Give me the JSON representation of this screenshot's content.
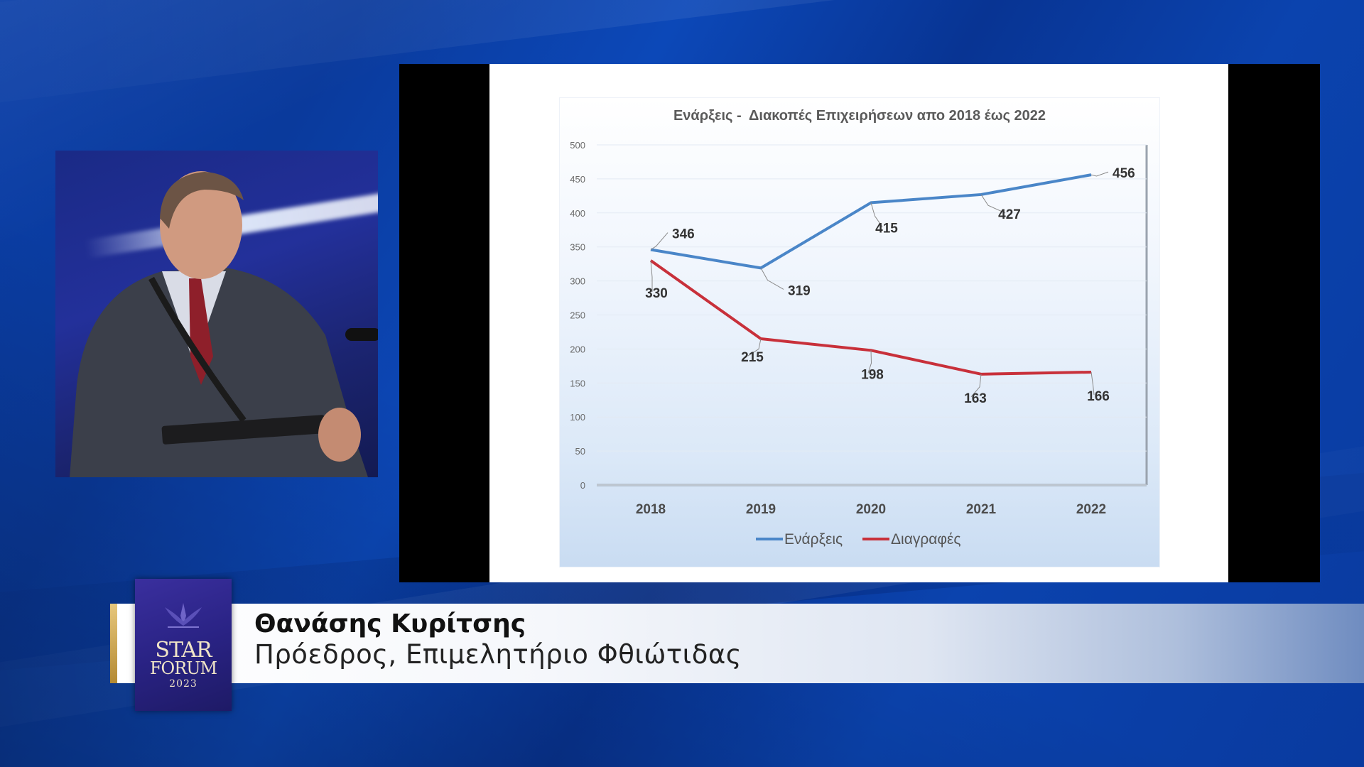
{
  "speaker": {
    "name": "Θανάσης Κυρίτσης",
    "role": "Πρόεδρος, Επιμελητήριο Φθιώτιδας"
  },
  "logo": {
    "line1": "STAR",
    "line2": "FORUM",
    "line3": "2023"
  },
  "colors": {
    "background_blue": "#0b3fa8",
    "series_enarxeis": "#4a86c8",
    "series_diagrafes": "#c8303a",
    "logo_purple": "#2a2385",
    "gold": "#c9a24f"
  },
  "chart_data": {
    "type": "line",
    "title": "Ενάρξεις -  Διακοπές Επιχειρήσεων απο 2018 έως 2022",
    "categories": [
      "2018",
      "2019",
      "2020",
      "2021",
      "2022"
    ],
    "ylim": [
      0,
      500
    ],
    "yticks": [
      "0",
      "50",
      "100",
      "150",
      "200",
      "250",
      "300",
      "350",
      "400",
      "450",
      "500"
    ],
    "legend_position": "bottom",
    "series": [
      {
        "name": "Ενάρξεις",
        "values": [
          346,
          319,
          415,
          427,
          456
        ],
        "labels": [
          "346",
          "319",
          "415",
          "427",
          "456"
        ]
      },
      {
        "name": "Διαγραφές",
        "values": [
          330,
          215,
          198,
          163,
          166
        ],
        "labels": [
          "330",
          "215",
          "198",
          "163",
          "166"
        ]
      }
    ]
  }
}
